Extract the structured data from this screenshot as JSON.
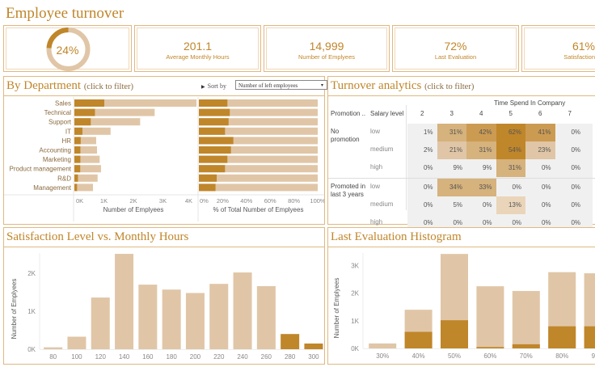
{
  "title": "Employee turnover",
  "kpis": [
    {
      "value": "24%",
      "label": "",
      "type": "donut",
      "fraction": 0.24
    },
    {
      "value": "201.1",
      "label": "Average Monthly Hours"
    },
    {
      "value": "14,999",
      "label": "Number of Emplyees"
    },
    {
      "value": "72%",
      "label": "Last Evaluation"
    },
    {
      "value": "61%",
      "label": "Satisfaction"
    }
  ],
  "colors": {
    "accent": "#c0862a",
    "light": "#e0c6a7",
    "border": "#e1b882"
  },
  "department": {
    "title": "By Department",
    "subtitle": "(click to filter)",
    "sort_label": "Sort by",
    "sort_value": "Number of left employees",
    "arrow": "▾"
  },
  "turnover": {
    "title": "Turnover analytics",
    "subtitle": "(click to filter)",
    "col_group": "Time Spend In Company",
    "header_promotion": "Promotion ..",
    "header_salary": "Salary level",
    "columns": [
      "2",
      "3",
      "4",
      "5",
      "6",
      "7"
    ],
    "groups": [
      {
        "label": "No promotion",
        "rows": [
          {
            "salary": "low",
            "values": [
              1,
              31,
              42,
              62,
              41,
              0
            ]
          },
          {
            "salary": "medium",
            "values": [
              2,
              21,
              31,
              54,
              23,
              0
            ]
          },
          {
            "salary": "high",
            "values": [
              0,
              9,
              9,
              31,
              0,
              0
            ]
          }
        ]
      },
      {
        "label": "Promoted in last 3 years",
        "rows": [
          {
            "salary": "low",
            "values": [
              0,
              34,
              33,
              0,
              0,
              0
            ]
          },
          {
            "salary": "medium",
            "values": [
              0,
              5,
              0,
              13,
              0,
              0
            ]
          },
          {
            "salary": "high",
            "values": [
              0,
              0,
              0,
              0,
              0,
              0
            ]
          }
        ]
      }
    ]
  },
  "satisfaction": {
    "title": "Satisfaction Level vs. Monthly Hours"
  },
  "evaluation": {
    "title": "Last Evaluation Histogram"
  },
  "chart_data": [
    {
      "type": "bar",
      "title": "By Department - Number of Emplyees",
      "categories": [
        "Sales",
        "Technical",
        "Support",
        "IT",
        "HR",
        "Accounting",
        "Marketing",
        "Product management",
        "R&D",
        "Management"
      ],
      "series": [
        {
          "name": "Left",
          "values": [
            1014,
            697,
            555,
            273,
            215,
            204,
            203,
            198,
            121,
            91
          ]
        },
        {
          "name": "Total",
          "values": [
            4140,
            2720,
            2229,
            1227,
            739,
            767,
            858,
            902,
            787,
            630
          ]
        }
      ],
      "xlabel": "Number of Emplyees",
      "xticks": [
        "0K",
        "1K",
        "2K",
        "3K",
        "4K"
      ],
      "xlim": [
        0,
        4000
      ],
      "orientation": "horizontal"
    },
    {
      "type": "bar",
      "title": "By Department - % of Total",
      "categories": [
        "Sales",
        "Technical",
        "Support",
        "IT",
        "HR",
        "Accounting",
        "Marketing",
        "Product management",
        "R&D",
        "Management"
      ],
      "series": [
        {
          "name": "Left %",
          "values": [
            24,
            26,
            25,
            22,
            29,
            27,
            24,
            22,
            15,
            14
          ]
        }
      ],
      "xlabel": "% of Total Number of Emplyees",
      "xticks": [
        "0%",
        "20%",
        "40%",
        "60%",
        "80%",
        "100%"
      ],
      "xlim": [
        0,
        100
      ],
      "orientation": "horizontal"
    },
    {
      "type": "heatmap",
      "title": "Turnover analytics",
      "x": [
        "2",
        "3",
        "4",
        "5",
        "6",
        "7"
      ],
      "y": [
        "No promotion / low",
        "No promotion / medium",
        "No promotion / high",
        "Promoted in last 3 years / low",
        "Promoted in last 3 years / medium",
        "Promoted in last 3 years / high"
      ],
      "values": [
        [
          1,
          31,
          42,
          62,
          41,
          0
        ],
        [
          2,
          21,
          31,
          54,
          23,
          0
        ],
        [
          0,
          9,
          9,
          31,
          0,
          0
        ],
        [
          0,
          34,
          33,
          0,
          0,
          0
        ],
        [
          0,
          5,
          0,
          13,
          0,
          0
        ],
        [
          0,
          0,
          0,
          0,
          0,
          0
        ]
      ]
    },
    {
      "type": "bar",
      "title": "Satisfaction Level vs. Monthly Hours",
      "categories": [
        "80",
        "100",
        "120",
        "140",
        "160",
        "180",
        "200",
        "220",
        "240",
        "260",
        "280",
        "300"
      ],
      "values": [
        50,
        330,
        1360,
        2510,
        1700,
        1570,
        1480,
        1720,
        2020,
        1660,
        400,
        150
      ],
      "highlight": [
        false,
        false,
        false,
        false,
        false,
        false,
        false,
        false,
        false,
        false,
        true,
        true
      ],
      "ylabel": "Number of Emplyees",
      "yticks": [
        "0K",
        "1K",
        "2K"
      ],
      "ylim": [
        0,
        2700
      ]
    },
    {
      "type": "bar",
      "title": "Last Evaluation Histogram",
      "categories": [
        "30%",
        "40%",
        "50%",
        "60%",
        "70%",
        "80%",
        "90%"
      ],
      "series": [
        {
          "name": "Left",
          "values": [
            0,
            600,
            1020,
            50,
            150,
            800,
            800
          ]
        },
        {
          "name": "Total",
          "values": [
            180,
            1400,
            3420,
            2250,
            2080,
            2760,
            2720
          ]
        }
      ],
      "ylabel": "Number of Emplyees",
      "yticks": [
        "0K",
        "1K",
        "2K",
        "3K"
      ],
      "ylim": [
        0,
        3600
      ]
    }
  ]
}
